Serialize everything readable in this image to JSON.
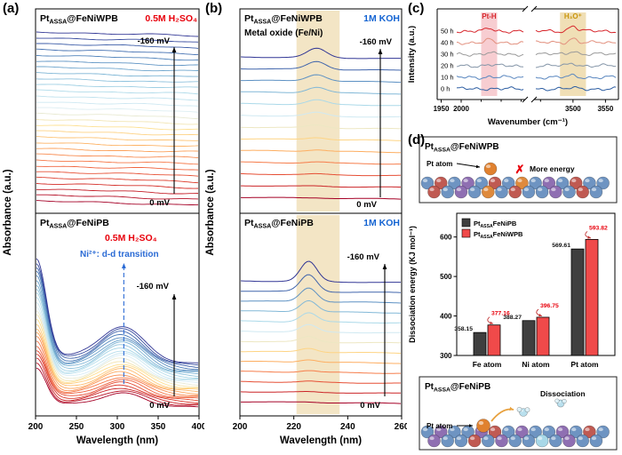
{
  "accent_colors": {
    "red": "#e8000b",
    "blue": "#1464d2",
    "band_tan": "#f0dfb6",
    "band_pink": "#f7cdd1"
  },
  "panel_a": {
    "letter": "(a)",
    "xlabel": "Wavelength (nm)",
    "ylabel": "Absorbance (a.u.)"
  },
  "panel_b": {
    "letter": "(b)",
    "xlabel": "Wavelength (nm)",
    "ylabel": "Absorbance (a.u.)"
  },
  "panel_c": {
    "letter": "(c)",
    "xlabel": "Wavenumber (cm⁻¹)",
    "ylabel": "Intensity (a.u.)"
  },
  "panel_d": {
    "letter": "(d)",
    "top_box": {
      "title": "Pt_{ASSA}@FeNiWPB",
      "atom_label": "Pt atom",
      "cross": "✗",
      "note": "More energy"
    },
    "bottom_box": {
      "title": "Pt_{ASSA}@FeNiPB",
      "atom_label": "Pt atom",
      "note": "Dissociation"
    }
  },
  "chart_data": [
    {
      "id": "a_top",
      "type": "line",
      "panel": "a",
      "position": "top",
      "title": "Pt_{ASSA}@FeNiWPB",
      "condition": "0.5M H₂SO₄",
      "condition_color": "#e8000b",
      "xlabel": "Wavelength (nm)",
      "ylabel": "Absorbance (a.u.)",
      "xlim": [
        200,
        400
      ],
      "xticks": [
        200,
        250,
        300,
        350,
        400
      ],
      "n_curves": 30,
      "potential_start": "0 mV",
      "potential_end": "-160 mV",
      "series_note": "30 in-situ UV-vis spectra, nearly flat offset traces colored from red (0 mV, bottom) to blue (-160 mV, top)"
    },
    {
      "id": "a_bottom",
      "type": "line",
      "panel": "a",
      "position": "bottom",
      "title": "Pt_{ASSA}@FeNiPB",
      "condition": "0.5M H₂SO₄",
      "condition_color": "#e8000b",
      "annotation": "Ni²⁺: d-d transition",
      "annotation_color": "#2b6bd5",
      "annotation_x_nm": 308,
      "xlim": [
        200,
        400
      ],
      "xticks": [
        200,
        250,
        300,
        350,
        400
      ],
      "n_curves": 26,
      "potential_start": "0 mV",
      "potential_end": "-160 mV",
      "series_note": "spectra with strong rise at 200 nm and d-d transition band near 300 nm, growing from 0 mV (red) to -160 mV (blue)"
    },
    {
      "id": "b_top",
      "type": "line",
      "panel": "b",
      "position": "top",
      "title": "Pt_{ASSA}@FeNiWPB",
      "condition": "1M KOH",
      "condition_color": "#1464d2",
      "annotation": "Metal oxide (Fe/Ni)",
      "band_nm": [
        221,
        237
      ],
      "xlim": [
        200,
        260
      ],
      "xticks": [
        200,
        220,
        240,
        260
      ],
      "n_curves": 13,
      "potential_start": "0 mV",
      "potential_end": "-160 mV",
      "series_note": "offset spectra with metal-oxide band near 228 nm, stronger at -160 mV (blue, top)"
    },
    {
      "id": "b_bottom",
      "type": "line",
      "panel": "b",
      "position": "bottom",
      "title": "Pt_{ASSA}@FeNiPB",
      "condition": "1M KOH",
      "condition_color": "#1464d2",
      "band_nm": [
        221,
        237
      ],
      "xlim": [
        200,
        260
      ],
      "xticks": [
        200,
        220,
        240,
        260
      ],
      "n_curves": 13,
      "potential_start": "0 mV",
      "potential_end": "-160 mV",
      "series_note": "offset spectra with peak near 225 nm, strongest at -160 mV (blue, top)"
    },
    {
      "id": "c",
      "type": "line",
      "panel": "c",
      "xlabel": "Wavenumber (cm⁻¹)",
      "ylabel": "Intensity (a.u.)",
      "axis_break": true,
      "x_segments": [
        {
          "lim": [
            1940,
            2160
          ],
          "ticks": [
            1950,
            2000
          ],
          "minor": [
            2050,
            2100,
            2150
          ]
        },
        {
          "lim": [
            3440,
            3570
          ],
          "ticks": [
            3500,
            3550
          ],
          "minor": [
            3450
          ]
        }
      ],
      "curves": [
        {
          "label": "0 h",
          "color": "#2e5fa3"
        },
        {
          "label": "10 h",
          "color": "#5b88c0"
        },
        {
          "label": "20 h",
          "color": "#8495a8"
        },
        {
          "label": "30 h",
          "color": "#9a9a9a"
        },
        {
          "label": "40 h",
          "color": "#e2907e"
        },
        {
          "label": "50 h",
          "color": "#d7262c"
        }
      ],
      "bands": [
        {
          "label": "Pt-H",
          "range": [
            2050,
            2090
          ],
          "fill": "#f7cdd1",
          "label_color": "#d7262c"
        },
        {
          "label": "H₃O⁺",
          "range": [
            3480,
            3520
          ],
          "fill": "#f0dfb6",
          "label_color": "#c8950c"
        }
      ]
    },
    {
      "id": "d_bar",
      "type": "bar",
      "panel": "d",
      "ylabel": "Dissociation energy (KJ mol⁻¹)",
      "ylim": [
        300,
        660
      ],
      "yticks": [
        300,
        400,
        500,
        600
      ],
      "categories": [
        "Fe atom",
        "Ni atom",
        "Pt atom"
      ],
      "series": [
        {
          "name": "Pt_{ASSA}FeNiPB",
          "color": "#3f3f3f",
          "values": [
            358.15,
            388.27,
            569.61
          ]
        },
        {
          "name": "Pt_{ASSA}FeNiWPB",
          "color": "#f04a4a",
          "values": [
            377.16,
            396.75,
            593.82
          ]
        }
      ],
      "legend_position": "top-left",
      "grid": false
    }
  ]
}
